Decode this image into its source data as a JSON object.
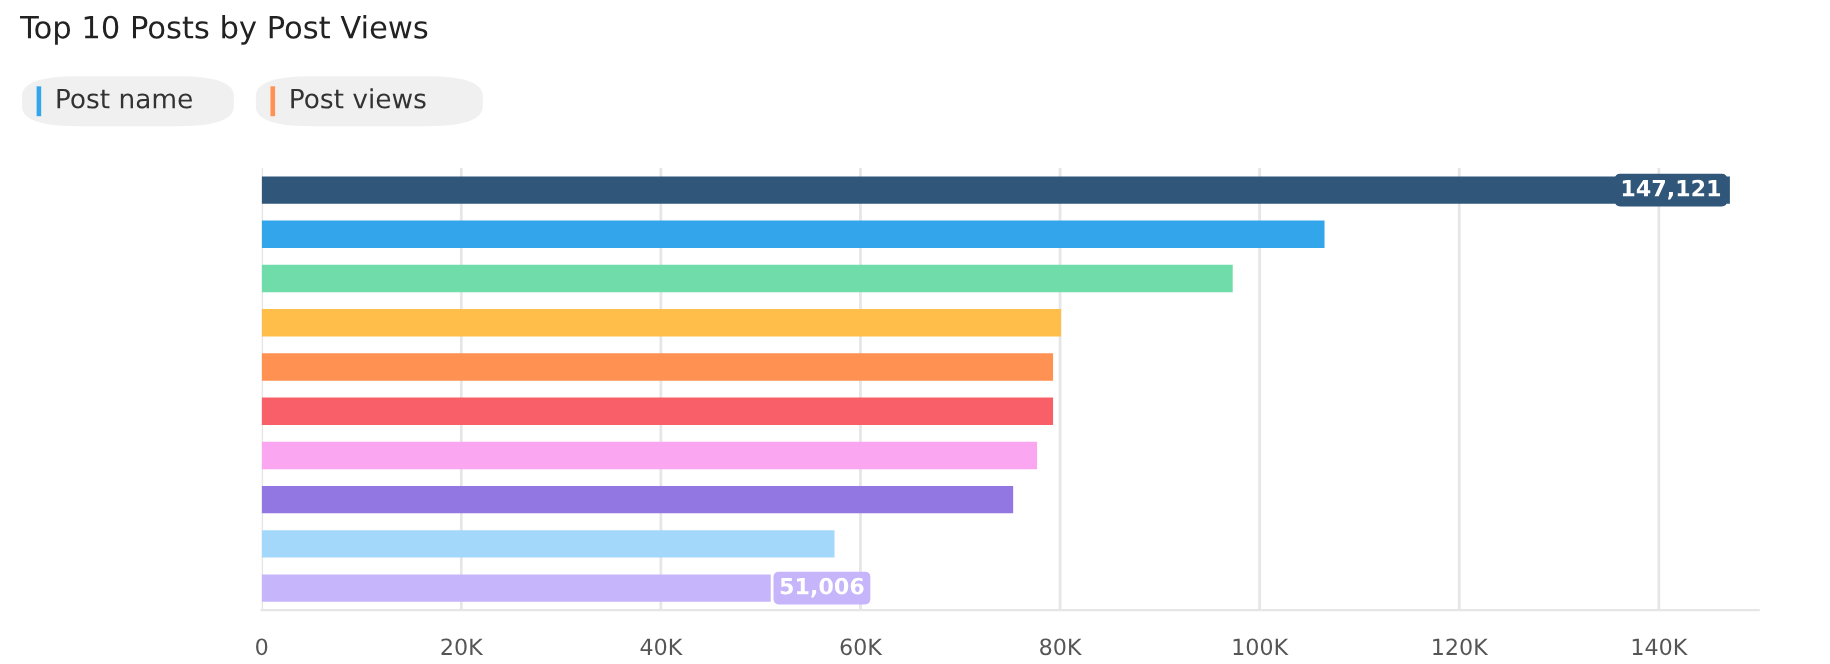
{
  "chart_data": {
    "type": "bar",
    "orientation": "horizontal",
    "title": "Top 10 Posts by Post Views",
    "annotations": [
      "Post name",
      "Post views"
    ],
    "categories": [
      null,
      null,
      null,
      null,
      null,
      null,
      null,
      null,
      null,
      null
    ],
    "values": [
      147121,
      106500,
      97300,
      80100,
      79300,
      79300,
      77700,
      75300,
      57400,
      51006
    ],
    "value_labels": [
      "147,121",
      null,
      null,
      null,
      null,
      null,
      null,
      null,
      null,
      "51,006"
    ],
    "colors": [
      "#30577a",
      "#33a5eb",
      "#6fdcaa",
      "#ffbe4a",
      "#ff9152",
      "#f95f68",
      "#fba6f1",
      "#9277e3",
      "#a3d8fb",
      "#c6b5fa"
    ],
    "xlim": [
      0,
      150000
    ],
    "xticks": [
      0,
      {
        "value": 20000,
        "label": "20K"
      },
      {
        "value": 40000,
        "label": "40K"
      },
      {
        "value": 60000,
        "label": "60K"
      },
      {
        "value": 80000,
        "label": "80K"
      },
      {
        "value": 100000,
        "label": "100K"
      },
      {
        "value": 120000,
        "label": "120K"
      },
      {
        "value": 140000,
        "label": "140K"
      }
    ],
    "grid": "x"
  }
}
